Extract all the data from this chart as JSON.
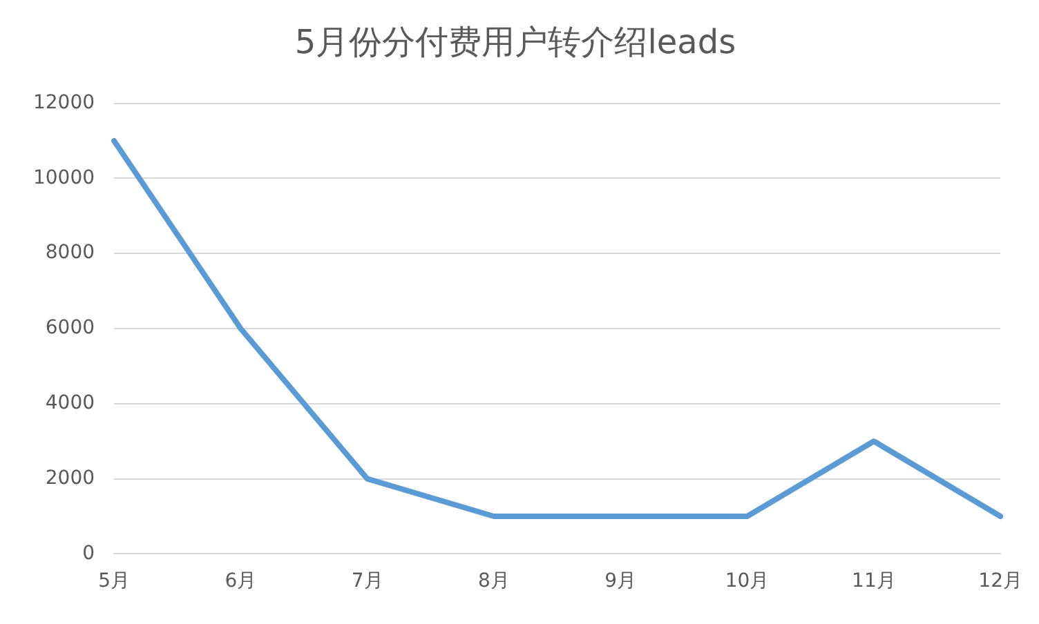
{
  "chart_data": {
    "type": "line",
    "title": "5月份分付费用户转介绍leads",
    "categories": [
      "5月",
      "6月",
      "7月",
      "8月",
      "9月",
      "10月",
      "11月",
      "12月"
    ],
    "series": [
      {
        "color": "#5b9bd5",
        "values": [
          11000,
          6000,
          2000,
          1000,
          1000,
          1000,
          3000,
          1000
        ]
      }
    ],
    "ylim": [
      0,
      12000
    ],
    "yticks": [
      0,
      2000,
      4000,
      6000,
      8000,
      10000,
      12000
    ],
    "grid": "y",
    "legend": false,
    "marker": "none",
    "line_style": "solid"
  }
}
